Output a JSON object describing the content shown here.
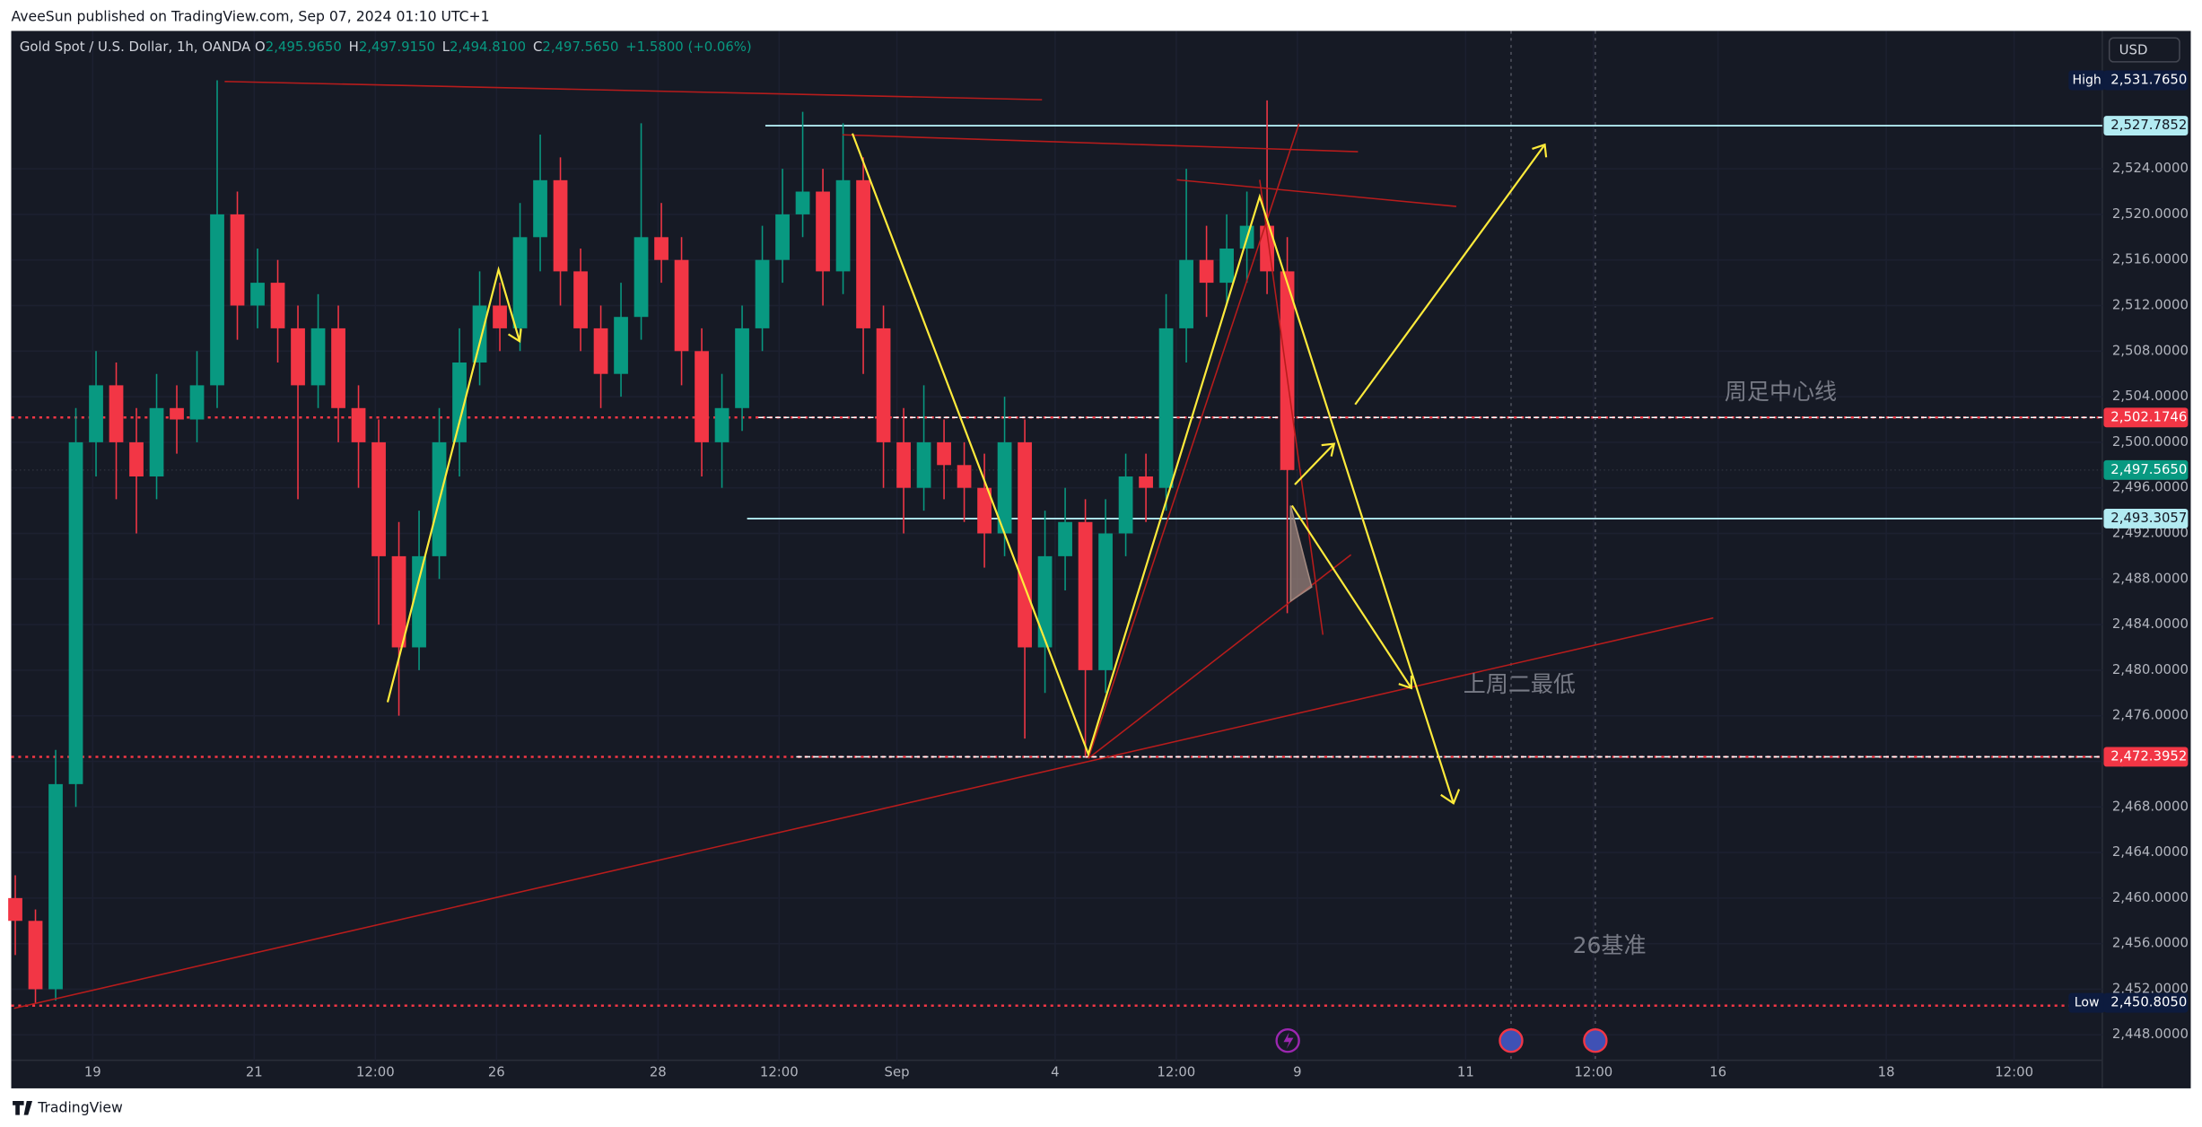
{
  "header": {
    "publisher": "AveeSun published on TradingView.com, Sep 07, 2024 01:10 UTC+1",
    "brand": "TradingView",
    "currency": "USD"
  },
  "chart_data": {
    "type": "candlestick",
    "title": "Gold Spot / U.S. Dollar, 1h, OANDA",
    "legend": [
      "O",
      "2,495.9650",
      "H",
      "2,497.9150",
      "L",
      "2,494.8100",
      "C",
      "2,497.5650",
      "+1.5800 (+0.06%)"
    ],
    "x": [
      -23,
      -17,
      -11,
      -5,
      1,
      7,
      13,
      19,
      25,
      31,
      37,
      43,
      49,
      55,
      61,
      67,
      73,
      79,
      85,
      91,
      97,
      103,
      109,
      115,
      121,
      127,
      133,
      139,
      145,
      151,
      157,
      163,
      169,
      175,
      181,
      187,
      193,
      199,
      205,
      211,
      217,
      223,
      229,
      235,
      241,
      247,
      253,
      259,
      265,
      271,
      277,
      283,
      289,
      295,
      301,
      307,
      313,
      319,
      325,
      331,
      337,
      343,
      349,
      355
    ],
    "open": [
      2460,
      2458,
      2452,
      2470,
      2500,
      2505,
      2500,
      2497,
      2503,
      2502,
      2505,
      2520,
      2512,
      2514,
      2510,
      2505,
      2510,
      2503,
      2500,
      2490,
      2482,
      2490,
      2500,
      2507,
      2512,
      2510,
      2518,
      2523,
      2515,
      2510,
      2506,
      2511,
      2518,
      2516,
      2508,
      2500,
      2503,
      2510,
      2516,
      2520,
      2522,
      2515,
      2523,
      2510,
      2500,
      2496,
      2500,
      2498,
      2496,
      2492,
      2500,
      2482,
      2490,
      2493,
      2480,
      2492,
      2497,
      2496,
      2510,
      2516,
      2514,
      2517,
      2519,
      2515
    ],
    "high": [
      2462,
      2459,
      2473,
      2503,
      2508,
      2507,
      2503,
      2506,
      2505,
      2508,
      2531.765,
      2522,
      2517,
      2516,
      2512,
      2513,
      2512,
      2505,
      2502,
      2493,
      2494,
      2503,
      2510,
      2515,
      2514,
      2521,
      2527,
      2525,
      2517,
      2512,
      2514,
      2528,
      2521,
      2518,
      2510,
      2506,
      2512,
      2519,
      2524,
      2529,
      2524,
      2528,
      2525,
      2512,
      2503,
      2505,
      2502,
      2500,
      2499,
      2504,
      2502,
      2494,
      2496,
      2495,
      2495,
      2499,
      2499,
      2513,
      2524,
      2519,
      2520,
      2522,
      2530,
      2518
    ],
    "low": [
      2455,
      2450.805,
      2451,
      2468,
      2497,
      2495,
      2492,
      2495,
      2499,
      2500,
      2503,
      2509,
      2510,
      2507,
      2495,
      2503,
      2500,
      2496,
      2484,
      2476,
      2480,
      2488,
      2497,
      2505,
      2508,
      2508,
      2515,
      2512,
      2508,
      2503,
      2504,
      2509,
      2514,
      2505,
      2497,
      2496,
      2501,
      2508,
      2514,
      2518,
      2512,
      2513,
      2506,
      2496,
      2492,
      2494,
      2495,
      2493,
      2489,
      2490,
      2474,
      2478,
      2487,
      2472.4,
      2478,
      2490,
      2493,
      2494,
      2507,
      2511,
      2512,
      2514,
      2513,
      2485
    ],
    "close": [
      2458,
      2452,
      2470,
      2500,
      2505,
      2500,
      2497,
      2503,
      2502,
      2505,
      2520,
      2512,
      2514,
      2510,
      2505,
      2510,
      2503,
      2500,
      2490,
      2482,
      2490,
      2500,
      2507,
      2512,
      2510,
      2518,
      2523,
      2515,
      2510,
      2506,
      2511,
      2518,
      2516,
      2508,
      2500,
      2503,
      2510,
      2516,
      2520,
      2522,
      2515,
      2523,
      2510,
      2500,
      2496,
      2500,
      2498,
      2496,
      2492,
      2500,
      2482,
      2490,
      2493,
      2480,
      2492,
      2497,
      2496,
      2510,
      2516,
      2514,
      2517,
      2519,
      2515,
      2497.565
    ],
    "up_color": "#089981",
    "down_color": "#f23645",
    "xlim": [
      -24.2,
      597.2
    ],
    "xticks": [
      {
        "value": 0,
        "label": "19"
      },
      {
        "value": 48,
        "label": "21"
      },
      {
        "value": 84,
        "label": "12:00"
      },
      {
        "value": 120,
        "label": "26"
      },
      {
        "value": 168,
        "label": "28"
      },
      {
        "value": 204,
        "label": "12:00"
      },
      {
        "value": 239,
        "label": "Sep"
      },
      {
        "value": 286,
        "label": "4"
      },
      {
        "value": 322,
        "label": "12:00"
      },
      {
        "value": 358,
        "label": "9"
      },
      {
        "value": 408,
        "label": "11"
      },
      {
        "value": 446,
        "label": "12:00"
      },
      {
        "value": 483,
        "label": "16"
      },
      {
        "value": 533,
        "label": "18"
      },
      {
        "value": 571,
        "label": "12:00"
      }
    ],
    "ylim": [
      2443.3,
      2536.1
    ],
    "yticks": [
      {
        "value": 2448,
        "label": "2,448.0000"
      },
      {
        "value": 2452,
        "label": "2,452.0000"
      },
      {
        "value": 2456,
        "label": "2,456.0000"
      },
      {
        "value": 2460,
        "label": "2,460.0000"
      },
      {
        "value": 2464,
        "label": "2,464.0000"
      },
      {
        "value": 2468,
        "label": "2,468.0000"
      },
      {
        "value": 2472,
        "label": "2,472.0000"
      },
      {
        "value": 2476,
        "label": "2,476.0000"
      },
      {
        "value": 2480,
        "label": "2,480.0000"
      },
      {
        "value": 2484,
        "label": "2,484.0000"
      },
      {
        "value": 2488,
        "label": "2,488.0000"
      },
      {
        "value": 2492,
        "label": "2,492.0000"
      },
      {
        "value": 2496,
        "label": "2,496.0000"
      },
      {
        "value": 2500,
        "label": "2,500.0000"
      },
      {
        "value": 2504,
        "label": "2,504.0000"
      },
      {
        "value": 2508,
        "label": "2,508.0000"
      },
      {
        "value": 2512,
        "label": "2,512.0000"
      },
      {
        "value": 2516,
        "label": "2,516.0000"
      },
      {
        "value": 2520,
        "label": "2,520.0000"
      },
      {
        "value": 2524,
        "label": "2,524.0000"
      }
    ],
    "levels": [
      {
        "value": 2527.7852,
        "label": "2,527.7852",
        "color": "#b2ebf2"
      },
      {
        "value": 2502.1746,
        "label": "2,502.1746",
        "color": "#f23645"
      },
      {
        "value": 2493.3057,
        "label": "2,493.3057",
        "color": "#b2ebf2"
      },
      {
        "value": 2472.3952,
        "label": "2,472.3952",
        "color": "#f23645"
      }
    ],
    "last_price": {
      "value": 2497.565,
      "label": "2,497.5650",
      "color": "#089981"
    },
    "high_marker": {
      "name": "High",
      "value": 2531.765,
      "label": "2,531.7650"
    },
    "low_marker": {
      "name": "Low",
      "value": 2450.805,
      "label": "2,450.8050"
    },
    "annotations": [
      "周足中心线",
      "上周二最低",
      "26基准"
    ]
  }
}
